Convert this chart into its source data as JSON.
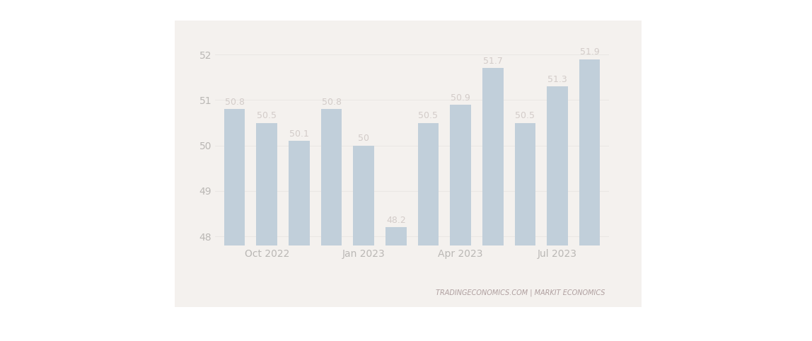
{
  "x_tick_labels": [
    "Oct 2022",
    "Jan 2023",
    "Apr 2023",
    "Jul 2023"
  ],
  "x_tick_positions": [
    1,
    4,
    7,
    10
  ],
  "values": [
    50.8,
    50.5,
    50.1,
    50.8,
    50.0,
    48.2,
    50.5,
    50.9,
    51.7,
    50.5,
    51.3,
    51.9
  ],
  "bar_color": "#4a86b8",
  "ylim_min": 47.8,
  "ylim_max": 52.3,
  "yticks": [
    48,
    49,
    50,
    51,
    52
  ],
  "label_color": "#8a7a7a",
  "label_fontsize": 9,
  "tick_label_fontsize": 10,
  "tick_label_color": "#333333",
  "watermark": "TRADINGECONOMICS.COM | MARKIT ECONOMICS",
  "watermark_color": "#b0a0a0",
  "panel_bg": "#f0ece8",
  "panel_alpha": 0.72
}
